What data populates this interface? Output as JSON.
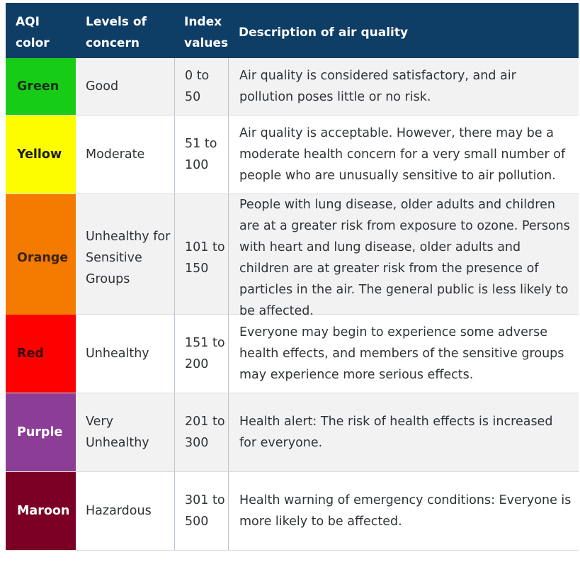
{
  "header": {
    "color": "AQI color",
    "levels": "Levels of concern",
    "index": "Index values",
    "description": "Description of air quality"
  },
  "rows": [
    {
      "color_name": "Green",
      "color_hex": "#17cc17",
      "text_hex": "#1a2e1a",
      "level": "Good",
      "index": "0 to 50",
      "description": "Air quality is considered satisfactory, and air pollution poses little or no risk."
    },
    {
      "color_name": "Yellow",
      "color_hex": "#fdfd00",
      "text_hex": "#1c1c10",
      "level": "Moderate",
      "index": "51 to 100",
      "description": "Air quality is acceptable. However, there may be a moderate health concern for a very small number of people who are unusually sensitive to air pollution."
    },
    {
      "color_name": "Orange",
      "color_hex": "#f47a00",
      "text_hex": "#3a2410",
      "level": "Unhealthy for Sensitive Groups",
      "index": "101 to 150",
      "description": "People with lung disease, older adults and children are at a greater risk from exposure to ozone. Persons with heart and lung disease, older adults and children are at greater risk from the presence of particles in the air. The general public is less likely to be affected."
    },
    {
      "color_name": "Red",
      "color_hex": "#fe0000",
      "text_hex": "#3a0a0a",
      "level": "Unhealthy",
      "index": "151 to 200",
      "description": "Everyone may begin to experience some adverse health effects, and members of the sensitive groups may experience more serious effects."
    },
    {
      "color_name": "Purple",
      "color_hex": "#8c3e97",
      "text_hex": "#ffffff",
      "level": "Very Unhealthy",
      "index": "201 to 300",
      "description": "Health alert: The risk of health effects is increased for everyone."
    },
    {
      "color_name": "Maroon",
      "color_hex": "#7c0025",
      "text_hex": "#ffffff",
      "level": "Hazardous",
      "index": "301 to 500",
      "description": "Health warning of emergency conditions: Everyone is more likely to be affected."
    }
  ]
}
